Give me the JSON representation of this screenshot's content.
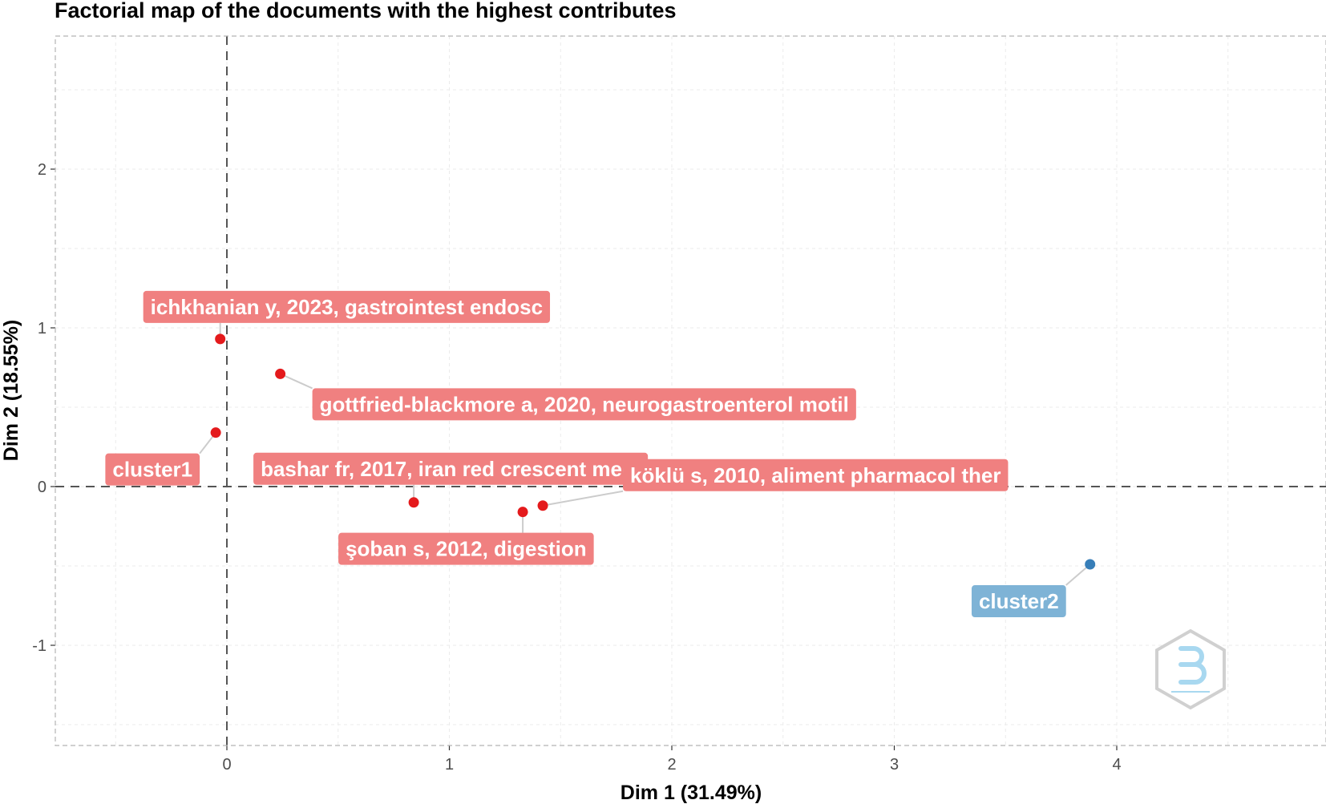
{
  "chart_data": {
    "type": "scatter",
    "title": "Factorial map of the documents with the highest contributes",
    "xlabel": "Dim 1 (31.49%)",
    "ylabel": "Dim 2 (18.55%)",
    "xlim": [
      -0.8,
      4.9
    ],
    "ylim": [
      -1.65,
      2.85
    ],
    "x_ticks": [
      0,
      1,
      2,
      3,
      4
    ],
    "y_ticks": [
      -1,
      0,
      1,
      2
    ],
    "grid": true,
    "reference_lines": {
      "x": 0,
      "y": 0
    },
    "colors": {
      "cluster1": "#e41a1c",
      "cluster1_label": "#f08080",
      "cluster2": "#377eb8",
      "cluster2_label": "#7eb3d6"
    },
    "points": [
      {
        "label": "ichkhanian y, 2023, gastrointest endosc",
        "x": -0.03,
        "y": 0.93,
        "cluster": "cluster1"
      },
      {
        "label": "gottfried-blackmore a, 2020, neurogastroenterol motil",
        "x": 0.24,
        "y": 0.71,
        "cluster": "cluster1"
      },
      {
        "label": "cluster1",
        "x": -0.05,
        "y": 0.34,
        "cluster": "cluster1"
      },
      {
        "label": "bashar fr, 2017, iran red crescent medj",
        "x": 0.84,
        "y": -0.1,
        "cluster": "cluster1"
      },
      {
        "label": "şoban s, 2012, digestion",
        "x": 1.33,
        "y": -0.16,
        "cluster": "cluster1"
      },
      {
        "label": "köklü s, 2010, aliment pharmacol ther",
        "x": 1.42,
        "y": -0.12,
        "cluster": "cluster1"
      },
      {
        "label": "cluster2",
        "x": 3.88,
        "y": -0.49,
        "cluster": "cluster2"
      }
    ]
  }
}
